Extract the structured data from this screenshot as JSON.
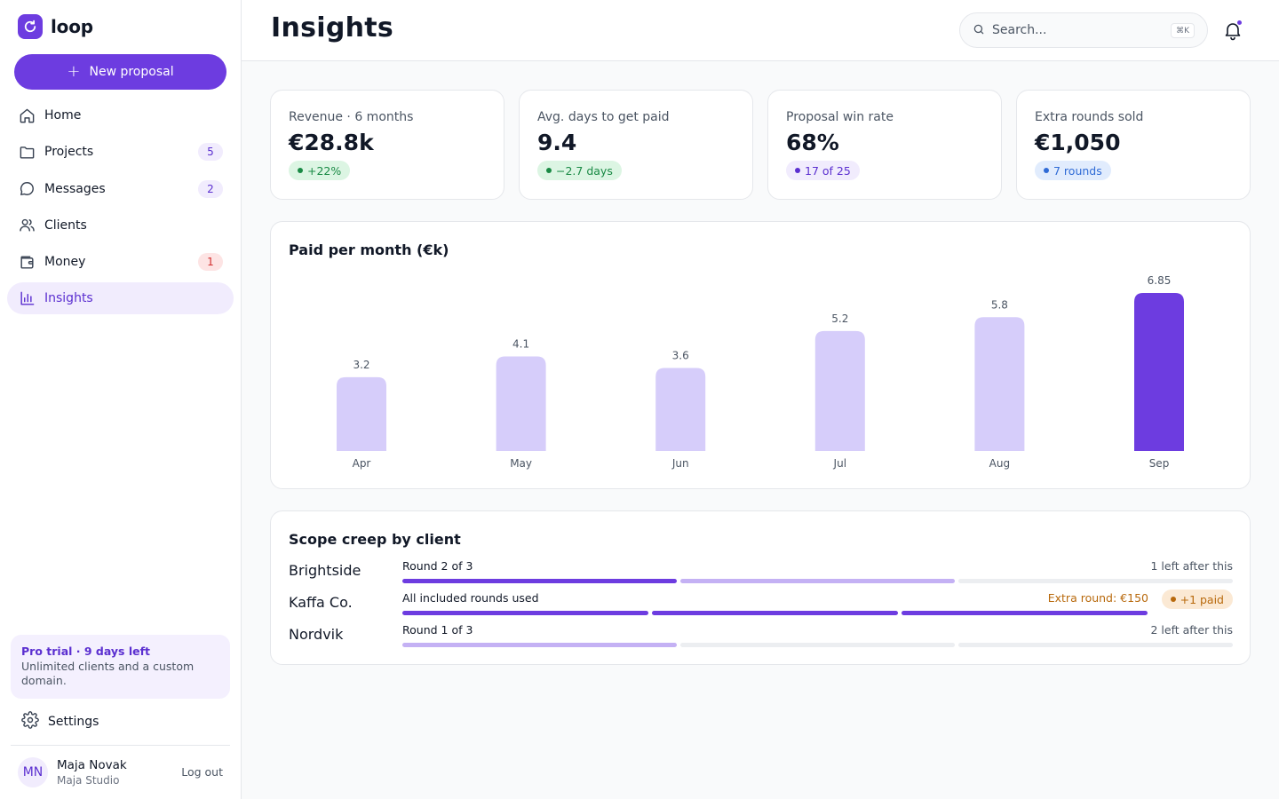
{
  "brand": {
    "name": "loop"
  },
  "sidebar": {
    "new_button": "New proposal",
    "items": [
      {
        "id": "home",
        "label": "Home",
        "icon": "home-icon",
        "badge": null
      },
      {
        "id": "projects",
        "label": "Projects",
        "icon": "folder-icon",
        "badge": "5"
      },
      {
        "id": "messages",
        "label": "Messages",
        "icon": "message-icon",
        "badge": "2"
      },
      {
        "id": "clients",
        "label": "Clients",
        "icon": "users-icon",
        "badge": null
      },
      {
        "id": "money",
        "label": "Money",
        "icon": "wallet-icon",
        "badge": "1"
      },
      {
        "id": "insights",
        "label": "Insights",
        "icon": "bar-chart-icon",
        "badge": null,
        "active": true
      }
    ],
    "trial": {
      "title": "Pro trial · 9 days left",
      "description": "Unlimited clients and a custom domain."
    },
    "settings_label": "Settings",
    "user": {
      "initials": "MN",
      "name": "Maja Novak",
      "org": "Maja Studio",
      "logout": "Log out"
    }
  },
  "header": {
    "title": "Insights",
    "search_placeholder": "Search...",
    "search_shortcut": "⌘K"
  },
  "stats": [
    {
      "label": "Revenue · 6 months",
      "value": "€28.8k",
      "pill": "+22%",
      "tone": "green"
    },
    {
      "label": "Avg. days to get paid",
      "value": "9.4",
      "pill": "−2.7 days",
      "tone": "green"
    },
    {
      "label": "Proposal win rate",
      "value": "68%",
      "pill": "17 of 25",
      "tone": "purple"
    },
    {
      "label": "Extra rounds sold",
      "value": "€1,050",
      "pill": "7 rounds",
      "tone": "blue"
    }
  ],
  "chart_data": {
    "type": "bar",
    "title": "Paid per month (€k)",
    "categories": [
      "Apr",
      "May",
      "Jun",
      "Jul",
      "Aug",
      "Sep"
    ],
    "values": [
      3.2,
      4.1,
      3.6,
      5.2,
      5.8,
      6.85
    ],
    "data_labels": [
      "3.2",
      "4.1",
      "3.6",
      "5.2",
      "5.8",
      "6.85"
    ],
    "highlight_index": 5,
    "ylim": [
      0,
      6.85
    ],
    "grid": false,
    "colors": {
      "bar": "#d6cdfa",
      "highlight": "#6d3ce0"
    }
  },
  "scope": {
    "title": "Scope creep by client",
    "clients": [
      {
        "name": "Brightside",
        "round_label": "Round 2 of 3",
        "note": "1 left after this",
        "segments": [
          "done",
          "current",
          "empty"
        ]
      },
      {
        "name": "Kaffa Co.",
        "round_label": "All included rounds used",
        "note": "Extra round: €150",
        "pill": "+1 paid",
        "segments": [
          "done",
          "done",
          "done"
        ]
      },
      {
        "name": "Nordvik",
        "round_label": "Round 1 of 3",
        "note": "2 left after this",
        "segments": [
          "current",
          "empty",
          "empty"
        ]
      }
    ]
  },
  "colors": {
    "accent": "#6d3ce0",
    "accent_soft": "#f1ecfd",
    "alert": "#d22f2f",
    "success": "#1a8a45",
    "warning": "#b8690c"
  }
}
